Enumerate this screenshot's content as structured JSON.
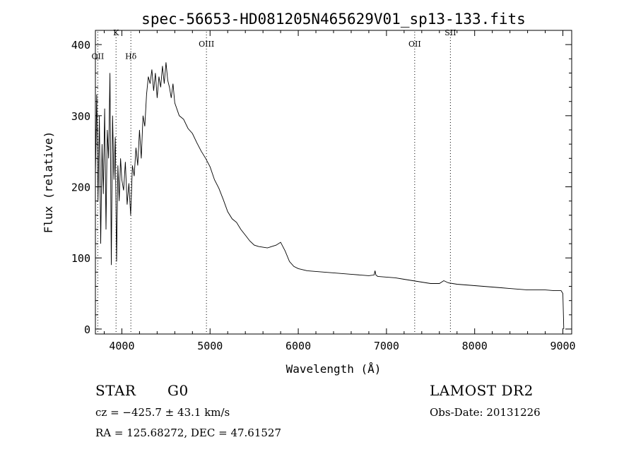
{
  "chart_data": {
    "type": "line",
    "title": "spec-56653-HD081205N465629V01_sp13-133.fits",
    "xlabel": "Wavelength (Å)",
    "ylabel": "Flux (relative)",
    "xlim": [
      3700,
      9100
    ],
    "ylim": [
      -7,
      420
    ],
    "x_ticks": [
      4000,
      5000,
      6000,
      7000,
      8000,
      9000
    ],
    "y_ticks": [
      0,
      100,
      200,
      300,
      400
    ],
    "grid": false,
    "line_color": "#000000",
    "spectral_lines": [
      {
        "label": "OII",
        "x": 3727,
        "label_y": 380
      },
      {
        "label": "K",
        "x": 3934,
        "label_y": 413
      },
      {
        "label": "Hδ",
        "x": 4102,
        "label_y": 380
      },
      {
        "label": "OIII",
        "x": 4959,
        "label_y": 397
      },
      {
        "label": "OII",
        "x": 7320,
        "label_y": 397
      },
      {
        "label": "SII",
        "x": 7725,
        "label_y": 413
      }
    ],
    "series": [
      {
        "x": [
          3700,
          3715,
          3730,
          3745,
          3760,
          3775,
          3790,
          3805,
          3820,
          3835,
          3850,
          3865,
          3880,
          3895,
          3910,
          3925,
          3940,
          3955,
          3970,
          3985,
          4000,
          4020,
          4040,
          4060,
          4080,
          4100,
          4120,
          4140,
          4160,
          4180,
          4200,
          4220,
          4240,
          4260,
          4280,
          4300,
          4320,
          4340,
          4360,
          4380,
          4400,
          4420,
          4440,
          4460,
          4480,
          4500,
          4520,
          4540,
          4560,
          4580,
          4600,
          4650,
          4700,
          4750,
          4800,
          4850,
          4900,
          4950,
          5000,
          5050,
          5100,
          5150,
          5200,
          5250,
          5300,
          5350,
          5400,
          5450,
          5500,
          5550,
          5600,
          5650,
          5700,
          5750,
          5800,
          5850,
          5900,
          5950,
          6000,
          6100,
          6200,
          6300,
          6400,
          6500,
          6600,
          6700,
          6800,
          6860,
          6870,
          6880,
          6900,
          7000,
          7100,
          7200,
          7300,
          7400,
          7500,
          7600,
          7650,
          7700,
          7800,
          7900,
          8000,
          8100,
          8200,
          8300,
          8400,
          8500,
          8600,
          8700,
          8800,
          8900,
          8980,
          9000,
          9010
        ],
        "y": [
          215,
          330,
          180,
          300,
          120,
          260,
          190,
          310,
          140,
          280,
          240,
          360,
          90,
          300,
          210,
          270,
          95,
          230,
          180,
          240,
          210,
          195,
          235,
          175,
          205,
          160,
          230,
          215,
          255,
          230,
          280,
          240,
          300,
          285,
          330,
          355,
          345,
          365,
          335,
          360,
          325,
          355,
          340,
          370,
          345,
          375,
          350,
          340,
          325,
          345,
          318,
          300,
          295,
          282,
          275,
          262,
          250,
          240,
          228,
          210,
          198,
          182,
          165,
          155,
          150,
          140,
          132,
          124,
          118,
          116,
          115,
          114,
          116,
          118,
          122,
          110,
          95,
          88,
          85,
          82,
          81,
          80,
          79,
          78,
          77,
          76,
          75,
          76,
          82,
          76,
          74,
          73,
          72,
          70,
          68,
          66,
          64,
          64,
          68,
          65,
          63,
          62,
          61,
          60,
          59,
          58,
          57,
          56,
          55,
          55,
          55,
          54,
          54,
          50,
          0
        ]
      }
    ]
  },
  "info": {
    "class": "STAR",
    "subclass": "G0",
    "cz": "cz = −425.7 ± 43.1 km/s",
    "coords": "RA = 125.68272, DEC =  47.61527",
    "survey": "LAMOST DR2",
    "obs_date": "Obs-Date: 20131226"
  }
}
